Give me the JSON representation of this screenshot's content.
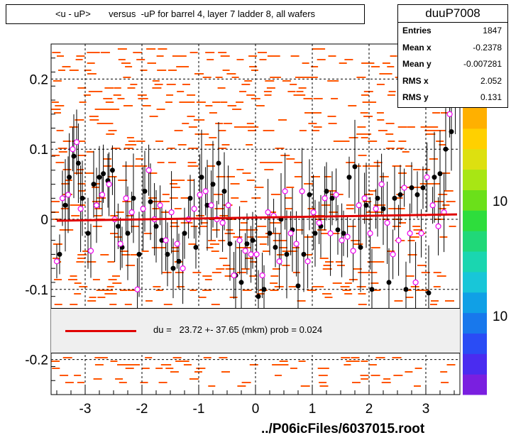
{
  "title": "<u - uP>       versus  -uP for barrel 4, layer 7 ladder 8, all wafers",
  "stats": {
    "name": "duuP7008",
    "rows": [
      {
        "label": "Entries",
        "value": "1847"
      },
      {
        "label": "Mean x",
        "value": "-0.2378"
      },
      {
        "label": "Mean y",
        "value": "-0.007281"
      },
      {
        "label": "RMS x",
        "value": "2.052"
      },
      {
        "label": "RMS y",
        "value": "0.131"
      }
    ]
  },
  "fit_text": "du =   23.72 +- 37.65 (mkm) prob = 0.024",
  "footer": "../P06icFiles/6037015.root",
  "colors": {
    "fit": "#e00000",
    "hist": "#ff5500",
    "black_pts": "#000000",
    "pink_pts": "#ee00ee"
  },
  "chart_data": {
    "type": "scatter",
    "xlim": [
      -3.6,
      3.6
    ],
    "ylim": [
      -0.25,
      0.25
    ],
    "x_ticks": [
      -3,
      -2,
      -1,
      0,
      1,
      2,
      3
    ],
    "x_tick_labels": [
      "-3",
      "-2",
      "-1",
      "0",
      "1",
      "2",
      "3"
    ],
    "y_ticks": [
      -0.2,
      -0.1,
      0,
      0.1,
      0.2
    ],
    "y_tick_labels": [
      "-0.2",
      "-0.1",
      "0",
      "0.1",
      "0.2"
    ],
    "z_axis_labels": [
      "10",
      "10"
    ],
    "grid": true,
    "fit_line": {
      "x": [
        -3.5,
        3.55
      ],
      "y": [
        -0.002,
        0.007
      ]
    },
    "black_points": {
      "x": [
        -3.45,
        -3.35,
        -3.28,
        -3.2,
        -3.12,
        -3.05,
        -2.95,
        -2.85,
        -2.75,
        -2.68,
        -2.6,
        -2.52,
        -2.42,
        -2.35,
        -2.25,
        -2.15,
        -2.05,
        -1.95,
        -1.85,
        -1.75,
        -1.65,
        -1.55,
        -1.45,
        -1.35,
        -1.25,
        -1.15,
        -1.05,
        -0.95,
        -0.85,
        -0.75,
        -0.65,
        -0.55,
        -0.45,
        -0.35,
        -0.25,
        -0.15,
        -0.05,
        0.05,
        0.15,
        0.25,
        0.35,
        0.45,
        0.55,
        0.65,
        0.75,
        0.85,
        0.95,
        1.05,
        1.15,
        1.25,
        1.35,
        1.45,
        1.55,
        1.65,
        1.75,
        1.85,
        1.95,
        2.05,
        2.15,
        2.25,
        2.35,
        2.45,
        2.55,
        2.65,
        2.75,
        2.85,
        2.95,
        3.05,
        3.15,
        3.25,
        3.35,
        3.45
      ],
      "y": [
        -0.05,
        0.02,
        0.06,
        0.09,
        0.08,
        0.03,
        -0.02,
        0.05,
        0.06,
        0.065,
        0.055,
        0.07,
        -0.01,
        -0.04,
        -0.02,
        0.03,
        -0.05,
        0.04,
        0.025,
        -0.01,
        -0.03,
        -0.05,
        -0.07,
        -0.06,
        -0.02,
        0.03,
        -0.04,
        0.06,
        0.02,
        0.05,
        0.08,
        0.04,
        -0.035,
        -0.08,
        -0.09,
        -0.035,
        -0.03,
        -0.11,
        -0.1,
        -0.02,
        -0.04,
        0.0,
        -0.05,
        -0.015,
        -0.095,
        -0.05,
        0.035,
        -0.02,
        -0.01,
        0.04,
        0.03,
        -0.015,
        -0.02,
        0.06,
        0.075,
        -0.04,
        0.02,
        -0.1,
        0.03,
        0.015,
        -0.09,
        0.03,
        0.035,
        -0.1,
        0.045,
        0.035,
        0.045,
        -0.105,
        0.06,
        0.065,
        0.1,
        0.125
      ]
    },
    "pink_points": {
      "x": [
        -3.5,
        -3.4,
        -3.3,
        -3.22,
        -3.15,
        -3.08,
        -2.9,
        -2.8,
        -2.7,
        -2.58,
        -2.48,
        -2.38,
        -2.28,
        -2.18,
        -2.08,
        -1.98,
        -1.88,
        -1.78,
        -1.68,
        -1.58,
        -1.48,
        -1.38,
        -1.28,
        -1.18,
        -1.08,
        -0.98,
        -0.88,
        -0.78,
        -0.68,
        -0.58,
        -0.48,
        -0.38,
        -0.28,
        -0.18,
        -0.08,
        0.02,
        0.12,
        0.22,
        0.32,
        0.42,
        0.52,
        0.62,
        0.72,
        0.82,
        0.92,
        1.02,
        1.12,
        1.22,
        1.32,
        1.42,
        1.52,
        1.62,
        1.72,
        1.82,
        1.92,
        2.02,
        2.12,
        2.22,
        2.32,
        2.42,
        2.52,
        2.62,
        2.72,
        2.82,
        2.92,
        3.02,
        3.12,
        3.22,
        3.32,
        3.42,
        3.52
      ],
      "y": [
        -0.06,
        0.03,
        0.035,
        0.1,
        0.11,
        0.015,
        -0.045,
        0.02,
        0.035,
        0.05,
        0.0,
        -0.035,
        0.03,
        0.01,
        -0.1,
        0.015,
        0.07,
        0.0,
        0.02,
        -0.03,
        0.01,
        -0.035,
        -0.07,
        0.0,
        0.015,
        0.035,
        0.04,
        0.02,
        0.0,
        -0.005,
        0.02,
        -0.08,
        -0.03,
        -0.045,
        -0.05,
        -0.05,
        -0.08,
        0.01,
        0.005,
        -0.06,
        0.04,
        -0.02,
        -0.035,
        0.04,
        -0.06,
        0.01,
        -0.005,
        0.03,
        -0.02,
        0.035,
        -0.03,
        -0.025,
        -0.045,
        0.02,
        0.03,
        -0.02,
        0.015,
        0.05,
        -0.005,
        -0.05,
        -0.03,
        0.045,
        -0.02,
        -0.09,
        -0.02,
        0.06,
        0.02,
        -0.01,
        0.01,
        0.15,
        0.17
      ]
    }
  }
}
